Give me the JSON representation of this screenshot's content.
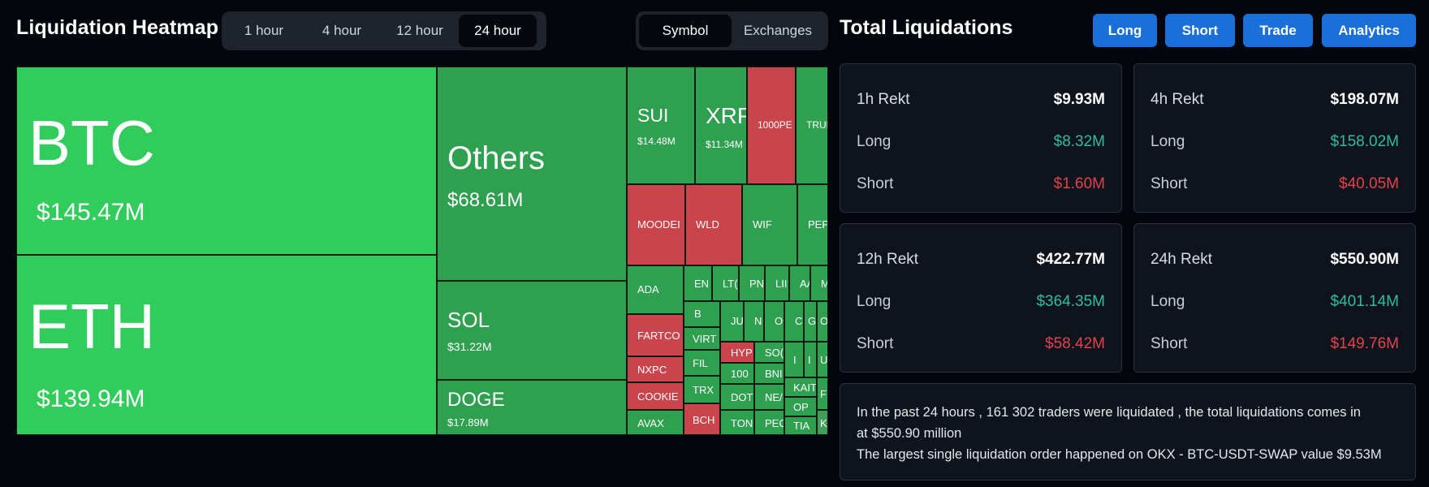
{
  "heatmap": {
    "title": "Liquidation Heatmap",
    "time_tabs": [
      {
        "label": "1 hour",
        "active": false
      },
      {
        "label": "4 hour",
        "active": false
      },
      {
        "label": "12 hour",
        "active": false
      },
      {
        "label": "24 hour",
        "active": true
      }
    ],
    "view_tabs": [
      {
        "label": "Symbol",
        "active": true
      },
      {
        "label": "Exchanges",
        "active": false
      }
    ],
    "tiles": {
      "btc": {
        "symbol": "BTC",
        "value": "$145.47M"
      },
      "eth": {
        "symbol": "ETH",
        "value": "$139.94M"
      },
      "others": {
        "symbol": "Others",
        "value": "$68.61M"
      },
      "sol": {
        "symbol": "SOL",
        "value": "$31.22M"
      },
      "doge": {
        "symbol": "DOGE",
        "value": "$17.89M"
      },
      "sui": {
        "symbol": "SUI",
        "value": "$14.48M"
      },
      "xrp": {
        "symbol": "XRP",
        "value": "$11.34M"
      },
      "pepe1000": {
        "symbol": "1000PE"
      },
      "trump": {
        "symbol": "TRUM"
      },
      "moodeng": {
        "symbol": "MOODEI"
      },
      "wld": {
        "symbol": "WLD"
      },
      "wif": {
        "symbol": "WIF"
      },
      "pepe": {
        "symbol": "PEPE"
      },
      "ada": {
        "symbol": "ADA"
      },
      "ena": {
        "symbol": "EN"
      },
      "ltc": {
        "symbol": "LT("
      },
      "pnut": {
        "symbol": "PN"
      },
      "link": {
        "symbol": "LII"
      },
      "aave": {
        "symbol": "AA"
      },
      "mk": {
        "symbol": "MI"
      },
      "fartcoin": {
        "symbol": "FARTCO"
      },
      "nxpc": {
        "symbol": "NXPC"
      },
      "cookie": {
        "symbol": "COOKIE"
      },
      "avax": {
        "symbol": "AVAX"
      },
      "b": {
        "symbol": "B"
      },
      "ju": {
        "symbol": "JU"
      },
      "n": {
        "symbol": "N"
      },
      "o1": {
        "symbol": "O"
      },
      "c": {
        "symbol": "C"
      },
      "g": {
        "symbol": "G"
      },
      "o2": {
        "symbol": "O"
      },
      "virt": {
        "symbol": "VIRT"
      },
      "hyp": {
        "symbol": "HYP"
      },
      "so": {
        "symbol": "SO("
      },
      "i1": {
        "symbol": "I"
      },
      "i2": {
        "symbol": "I"
      },
      "u": {
        "symbol": "U"
      },
      "fil": {
        "symbol": "FIL"
      },
      "k1000": {
        "symbol": "100"
      },
      "bnb": {
        "symbol": "BNI"
      },
      "kait": {
        "symbol": "KAIT"
      },
      "fe": {
        "symbol": "FE"
      },
      "trx": {
        "symbol": "TRX"
      },
      "dot": {
        "symbol": "DOT"
      },
      "near": {
        "symbol": "NE/"
      },
      "op": {
        "symbol": "OP"
      },
      "bch": {
        "symbol": "BCH"
      },
      "ton": {
        "symbol": "TON"
      },
      "pec": {
        "symbol": "PEC"
      },
      "tia": {
        "symbol": "TIA"
      },
      "ki": {
        "symbol": "KI"
      }
    }
  },
  "totals": {
    "title": "Total Liquidations",
    "buttons": {
      "long": "Long",
      "short": "Short",
      "trade": "Trade",
      "analytics": "Analytics"
    },
    "cards": [
      {
        "label": "1h Rekt",
        "total": "$9.93M",
        "long_label": "Long",
        "long": "$8.32M",
        "short_label": "Short",
        "short": "$1.60M"
      },
      {
        "label": "4h Rekt",
        "total": "$198.07M",
        "long_label": "Long",
        "long": "$158.02M",
        "short_label": "Short",
        "short": "$40.05M"
      },
      {
        "label": "12h Rekt",
        "total": "$422.77M",
        "long_label": "Long",
        "long": "$364.35M",
        "short_label": "Short",
        "short": "$58.42M"
      },
      {
        "label": "24h Rekt",
        "total": "$550.90M",
        "long_label": "Long",
        "long": "$401.14M",
        "short_label": "Short",
        "short": "$149.76M"
      }
    ],
    "summary": {
      "line1": "In the past 24 hours , 161 302 traders were liquidated , the total liquidations comes in",
      "line2": "at $550.90 million",
      "line3": "The largest single liquidation order happened on OKX - BTC-USDT-SWAP value $9.53M"
    }
  },
  "colors": {
    "long": "#2dbf98",
    "short": "#e1434f",
    "accent": "#1a6fd8",
    "tile_up": "#2ea04f",
    "tile_down": "#c9444b",
    "tile_major": "#31cd5c"
  }
}
